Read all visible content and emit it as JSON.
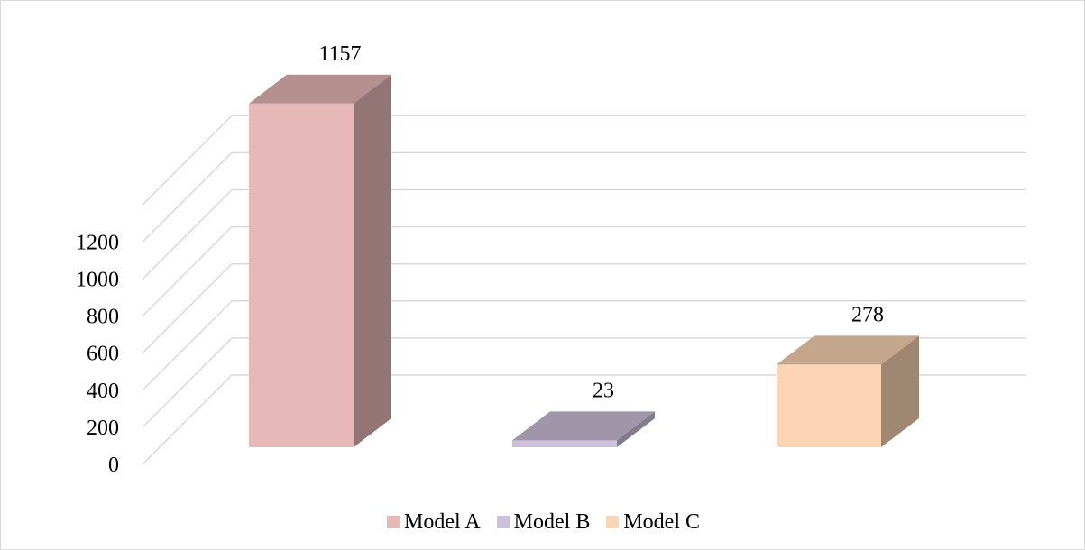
{
  "chart_data": {
    "type": "bar",
    "categories": [
      "Model A",
      "Model B",
      "Model C"
    ],
    "values": [
      1157,
      23,
      278
    ],
    "data_labels": [
      "1157",
      "23",
      "278"
    ],
    "y_ticks": [
      "0",
      "200",
      "400",
      "600",
      "800",
      "1000",
      "1200"
    ],
    "ylim": [
      0,
      1400
    ],
    "grid": true,
    "legend": "bottom",
    "legend_entries": [
      "Model A",
      "Model B",
      "Model C"
    ],
    "colors": {
      "front": [
        "#e6b8b7",
        "#ccc0da",
        "#fcd5b4"
      ],
      "top": [
        "#b4908f",
        "#9f96aa",
        "#c4a68c"
      ],
      "side": [
        "#927574",
        "#827b8b",
        "#a08771"
      ]
    },
    "gridline_color": "#d9d9d9",
    "style": "3d-column"
  }
}
